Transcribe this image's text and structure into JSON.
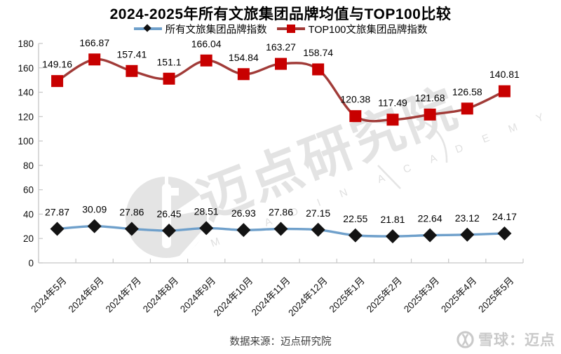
{
  "header": {
    "title": "2024-2025年所有文旅集团品牌均值与TOP100比较"
  },
  "chart_data": {
    "type": "line",
    "title": "2024-2025年所有文旅集团品牌均值与TOP100比较",
    "xlabel": "",
    "ylabel": "",
    "ylim": [
      0,
      180
    ],
    "ytick_step": 20,
    "grid": false,
    "legend_position": "top",
    "categories": [
      "2024年5月",
      "2024年6月",
      "2024年7月",
      "2024年8月",
      "2024年9月",
      "2024年10月",
      "2024年11月",
      "2024年12月",
      "2025年1月",
      "2025年2月",
      "2025年3月",
      "2025年4月",
      "2025年5月"
    ],
    "series": [
      {
        "name": "所有文旅集团品牌指数",
        "values": [
          27.87,
          30.09,
          27.86,
          26.45,
          28.51,
          26.93,
          27.86,
          27.15,
          22.55,
          21.81,
          22.64,
          23.12,
          24.17
        ],
        "line_color": "#6FA0CB",
        "marker": "diamond",
        "marker_color": "#131313"
      },
      {
        "name": "TOP100文旅集团品牌指数",
        "values": [
          149.16,
          166.87,
          157.41,
          151.1,
          166.04,
          154.84,
          163.27,
          158.74,
          120.38,
          117.49,
          121.68,
          126.58,
          140.81
        ],
        "line_color": "#A13B38",
        "marker": "square",
        "marker_color": "#C80000"
      }
    ]
  },
  "watermark": {
    "text_cn": "迈点研究院",
    "text_en_left": "M E A D I N",
    "text_en_right": "A C A D E M Y"
  },
  "footer": {
    "source": "数据来源：迈点研究院",
    "brand": "雪球：迈点"
  },
  "colors": {
    "axis": "#C6C6C6",
    "series_all_line": "#6FA0CB",
    "series_all_marker": "#131313",
    "series_top100_line": "#A13B38",
    "series_top100_marker": "#C80000"
  }
}
